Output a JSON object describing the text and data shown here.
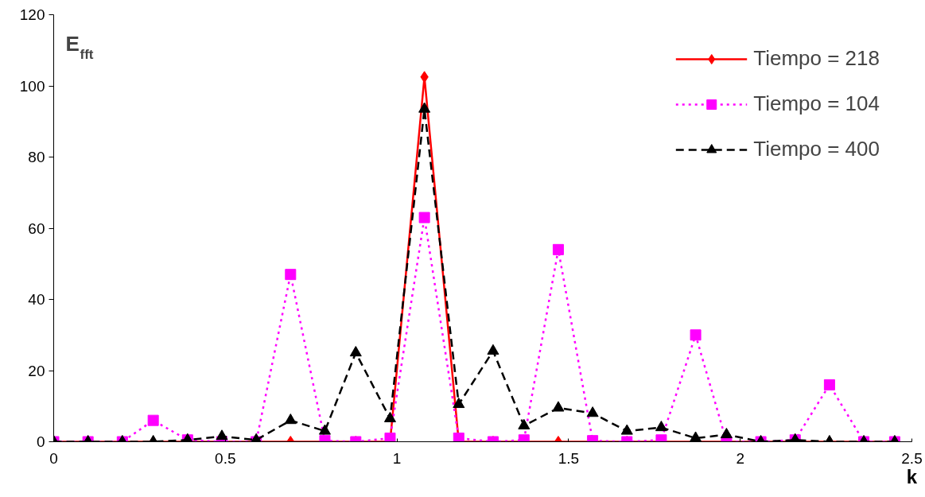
{
  "chart_data": {
    "type": "line",
    "xlabel": "k",
    "ylabel": "E$_{fft}$",
    "x": [
      0,
      0.1,
      0.2,
      0.29,
      0.39,
      0.49,
      0.59,
      0.69,
      0.79,
      0.88,
      0.98,
      1.08,
      1.18,
      1.28,
      1.37,
      1.47,
      1.57,
      1.67,
      1.77,
      1.87,
      1.96,
      2.06,
      2.16,
      2.26,
      2.36,
      2.45
    ],
    "series": [
      {
        "name": "Tiempo = 218",
        "color": "#ff0000",
        "marker": "diamond",
        "line_style": "solid",
        "values": [
          0,
          0,
          0,
          0,
          0,
          0,
          0,
          0,
          0,
          0,
          0,
          102.5,
          0,
          0,
          0,
          0,
          0,
          0,
          0,
          0,
          0,
          0,
          0,
          0,
          0,
          0
        ]
      },
      {
        "name": "Tiempo = 104",
        "color": "#ff00ff",
        "marker": "square",
        "line_style": "dotted",
        "values": [
          0,
          0,
          0,
          6,
          0.5,
          0,
          0,
          47,
          0.3,
          0,
          1,
          63,
          1,
          0,
          0.5,
          54,
          0.3,
          0,
          0.5,
          30,
          0,
          0,
          0.5,
          16,
          0,
          0
        ]
      },
      {
        "name": "Tiempo = 400",
        "color": "#000000",
        "marker": "triangle",
        "line_style": "dashed",
        "values": [
          0,
          0,
          0,
          0,
          0.5,
          1.5,
          0.5,
          6,
          3,
          25,
          6.5,
          93.5,
          10.5,
          25.5,
          4.5,
          9.5,
          8,
          3,
          4,
          1,
          2,
          0,
          0.5,
          0,
          0,
          0
        ]
      }
    ],
    "xlim": [
      0,
      2.5
    ],
    "xticks": [
      0,
      0.5,
      1,
      1.5,
      2,
      2.5
    ],
    "ylim": [
      0,
      120
    ],
    "yticks": [
      0,
      20,
      40,
      60,
      80,
      100,
      120
    ],
    "grid": false,
    "legend": "top right"
  }
}
